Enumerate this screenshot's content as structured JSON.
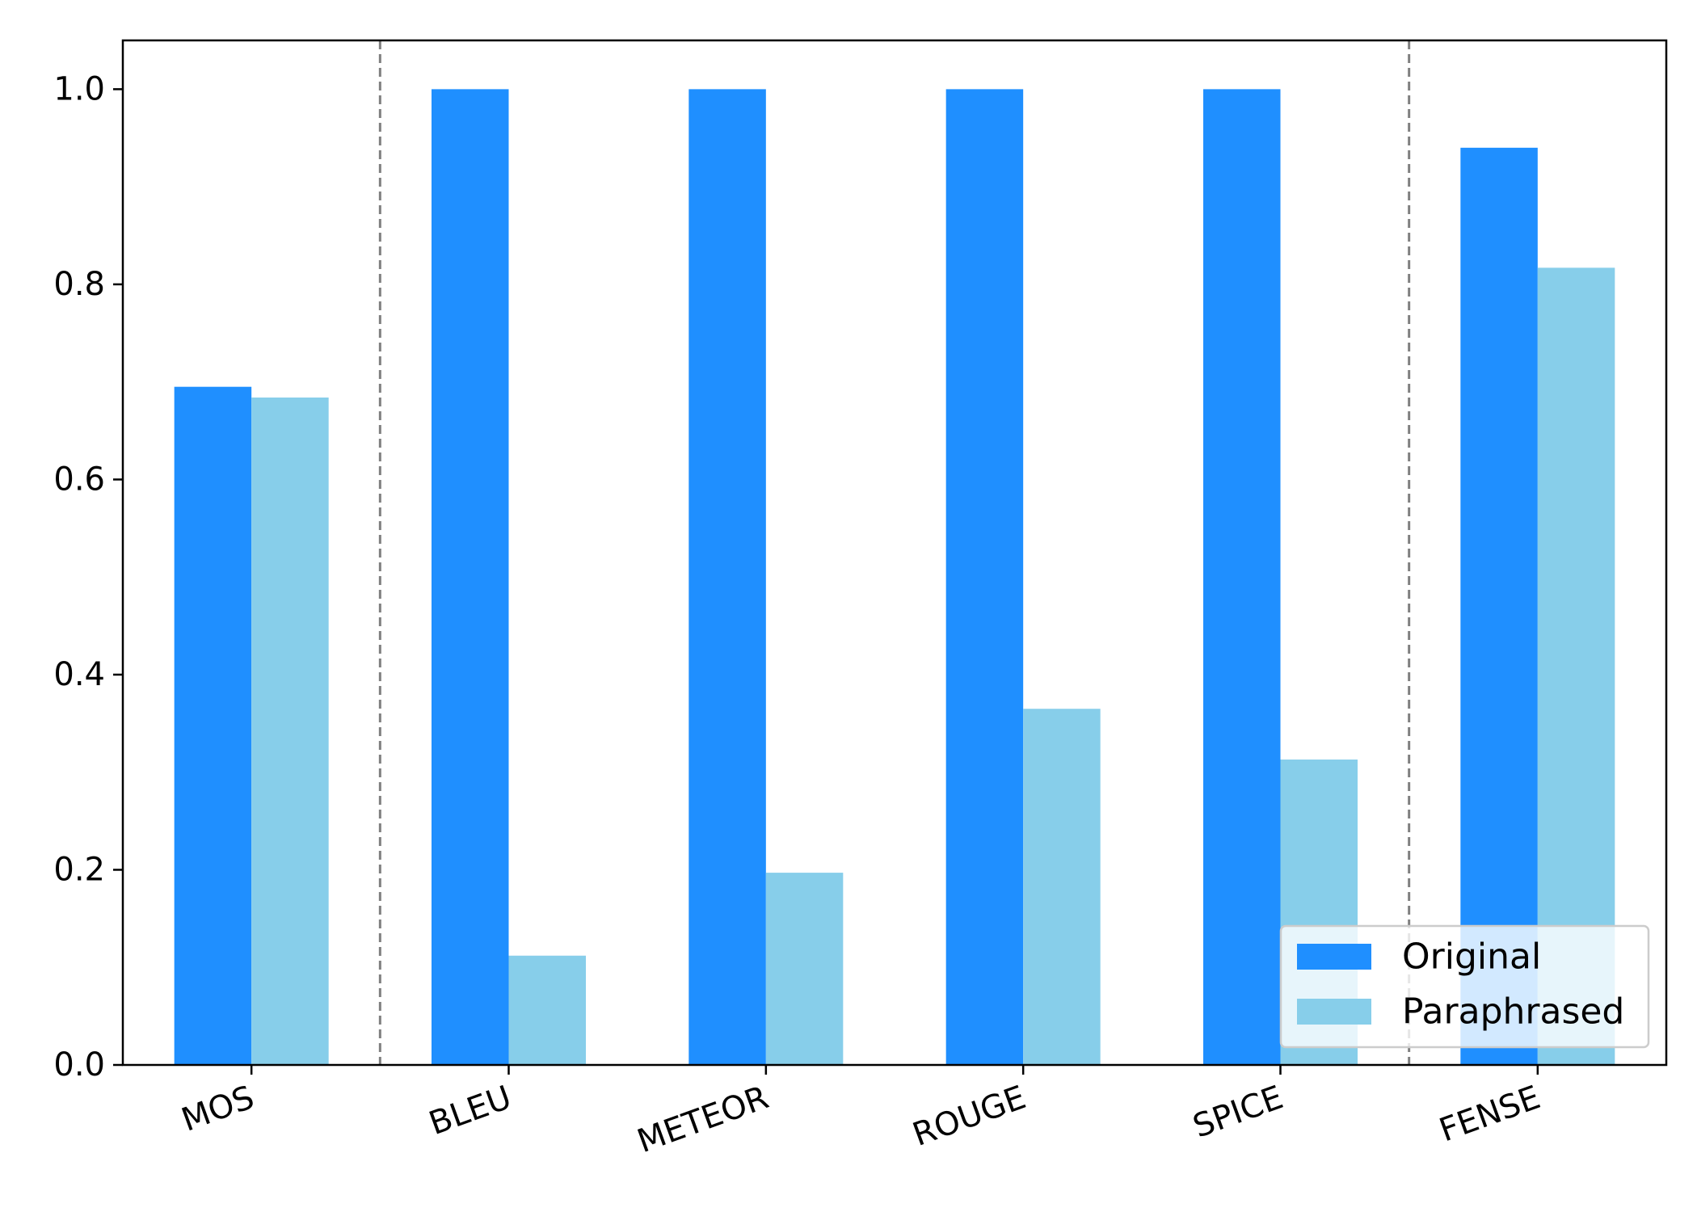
{
  "chart_data": {
    "type": "bar",
    "title": "",
    "xlabel": "",
    "ylabel": "",
    "categories": [
      "MOS",
      "BLEU",
      "METEOR",
      "ROUGE",
      "SPICE",
      "FENSE"
    ],
    "series": [
      {
        "name": "Original",
        "color": "#1f8fff",
        "values": [
          0.695,
          1.0,
          1.0,
          1.0,
          1.0,
          0.94
        ]
      },
      {
        "name": "Paraphrased",
        "color": "#87ceea",
        "values": [
          0.684,
          0.112,
          0.197,
          0.365,
          0.313,
          0.817
        ]
      }
    ],
    "ylim": [
      0,
      1.05
    ],
    "yticks": [
      "0.0",
      "0.2",
      "0.4",
      "0.6",
      "0.8",
      "1.0"
    ],
    "ytick_values": [
      0,
      0.2,
      0.4,
      0.6,
      0.8,
      1.0
    ],
    "separators_after_category": [
      0,
      4
    ],
    "separator_color": "#808080",
    "grid": false,
    "legend_position": "lower right",
    "xtick_rotation_deg": -20
  }
}
